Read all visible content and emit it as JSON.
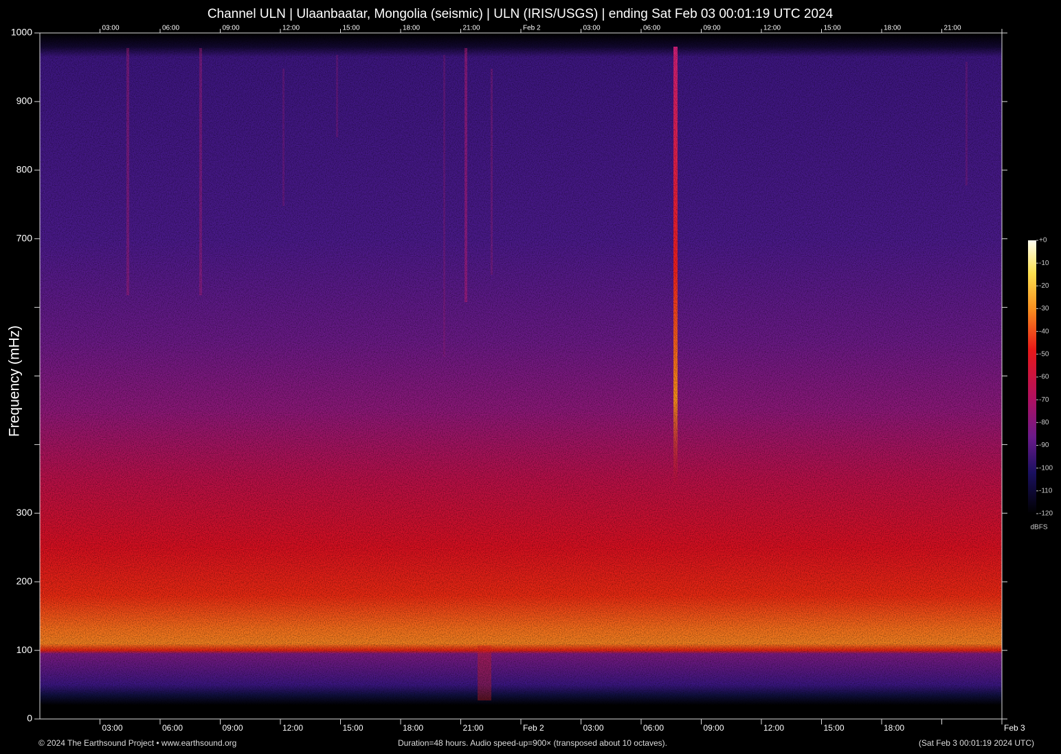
{
  "chart_data": {
    "type": "spectrogram",
    "title": "Channel ULN | Ulaanbaatar, Mongolia (seismic) | ULN (IRIS/USGS) | ending Sat Feb 03 00:01:19 UTC 2024",
    "ylabel": "Frequency (mHz)",
    "ylim": [
      0,
      1000
    ],
    "yticks": [
      0,
      100,
      200,
      300,
      {
        "value": 400,
        "label": null
      },
      {
        "value": 500,
        "label": null
      },
      {
        "value": 600,
        "label": null
      },
      700,
      800,
      900,
      1000
    ],
    "xlim": [
      0,
      48
    ],
    "xticks": [
      {
        "value": 3,
        "label": "03:00"
      },
      {
        "value": 6,
        "label": "06:00"
      },
      {
        "value": 9,
        "label": "09:00"
      },
      {
        "value": 12,
        "label": "12:00"
      },
      {
        "value": 15,
        "label": "15:00"
      },
      {
        "value": 18,
        "label": "18:00"
      },
      {
        "value": 21,
        "label": "21:00"
      },
      {
        "value": 24,
        "label": "Feb  2"
      },
      {
        "value": 27,
        "label": "03:00"
      },
      {
        "value": 30,
        "label": "06:00"
      },
      {
        "value": 33,
        "label": "09:00"
      },
      {
        "value": 36,
        "label": "12:00"
      },
      {
        "value": 39,
        "label": "15:00"
      },
      {
        "value": 42,
        "label": "18:00"
      },
      {
        "value": 45,
        "label": null
      },
      {
        "value": 48,
        "label": "Feb  3"
      }
    ],
    "xticks_top": [
      {
        "value": 3,
        "label": "03:00"
      },
      {
        "value": 6,
        "label": "06:00"
      },
      {
        "value": 9,
        "label": "09:00"
      },
      {
        "value": 12,
        "label": "12:00"
      },
      {
        "value": 15,
        "label": "15:00"
      },
      {
        "value": 18,
        "label": "18:00"
      },
      {
        "value": 21,
        "label": "21:00"
      },
      {
        "value": 24,
        "label": "Feb  2"
      },
      {
        "value": 27,
        "label": "03:00"
      },
      {
        "value": 30,
        "label": "06:00"
      },
      {
        "value": 33,
        "label": "09:00"
      },
      {
        "value": 36,
        "label": "12:00"
      },
      {
        "value": 39,
        "label": "15:00"
      },
      {
        "value": 42,
        "label": "18:00"
      },
      {
        "value": 45,
        "label": "21:00"
      },
      {
        "value": 48,
        "label": null
      }
    ],
    "colorbar": {
      "label": "dBFS",
      "lim": [
        -120,
        0
      ],
      "ticks": [
        {
          "value": 0,
          "label": "+0"
        },
        -10,
        -20,
        -30,
        -40,
        -50,
        -60,
        -70,
        -80,
        -90,
        -100,
        -110,
        -120
      ]
    },
    "footer": {
      "left": "© 2024 The Earthsound Project • www.earthsound.org",
      "center": "Duration=48 hours. Audio speed-up=900× (transposed about 10 octaves).",
      "right": "(Sat Feb  3 00:01:19 2024 UTC)"
    }
  }
}
